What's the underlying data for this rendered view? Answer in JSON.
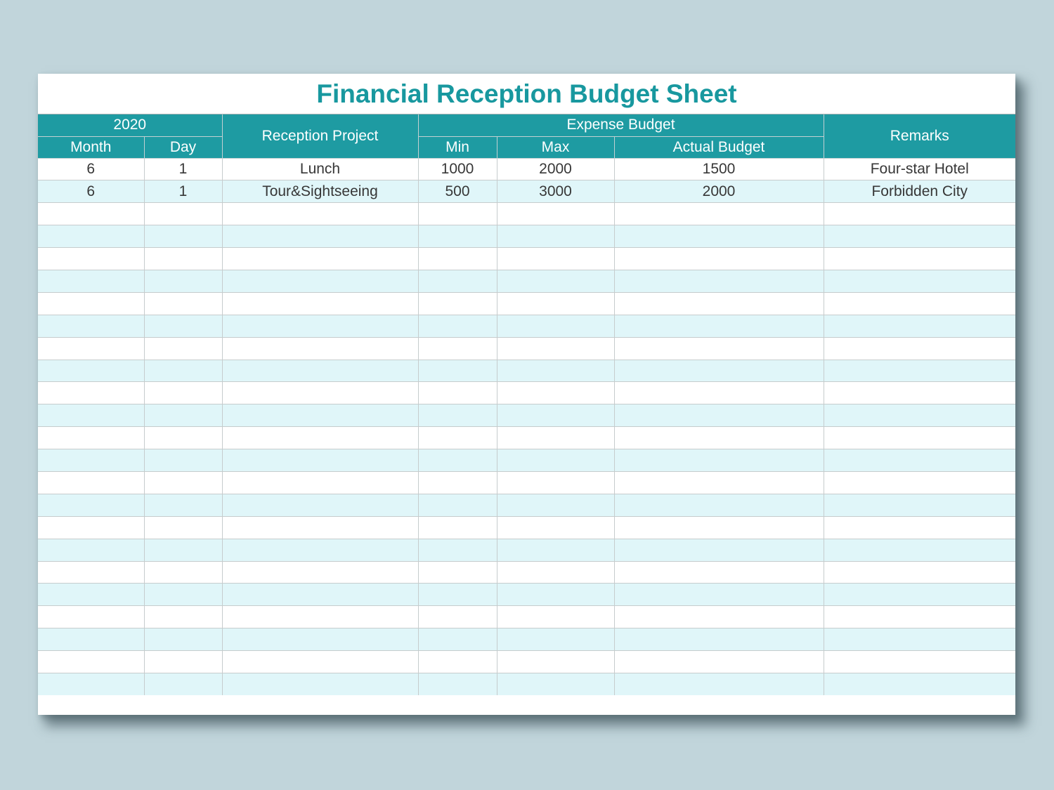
{
  "sheet": {
    "title": "Financial Reception Budget Sheet",
    "header": {
      "year_group": "2020",
      "month": "Month",
      "day": "Day",
      "reception_project": "Reception Project",
      "expense_budget_group": "Expense Budget",
      "min": "Min",
      "max": "Max",
      "actual_budget": "Actual Budget",
      "remarks": "Remarks"
    },
    "rows": [
      [
        "6",
        "1",
        "Lunch",
        "1000",
        "2000",
        "1500",
        "Four-star Hotel"
      ],
      [
        "6",
        "1",
        "Tour&Sightseeing",
        "500",
        "3000",
        "2000",
        "Forbidden City"
      ]
    ],
    "total_rows": 24,
    "colors": {
      "header_teal": "#1e9ba2",
      "title_teal": "#18989f",
      "stripe_blue": "#e0f6f9",
      "grid_line": "#c6cccd",
      "page_background": "#c1d5db"
    }
  }
}
